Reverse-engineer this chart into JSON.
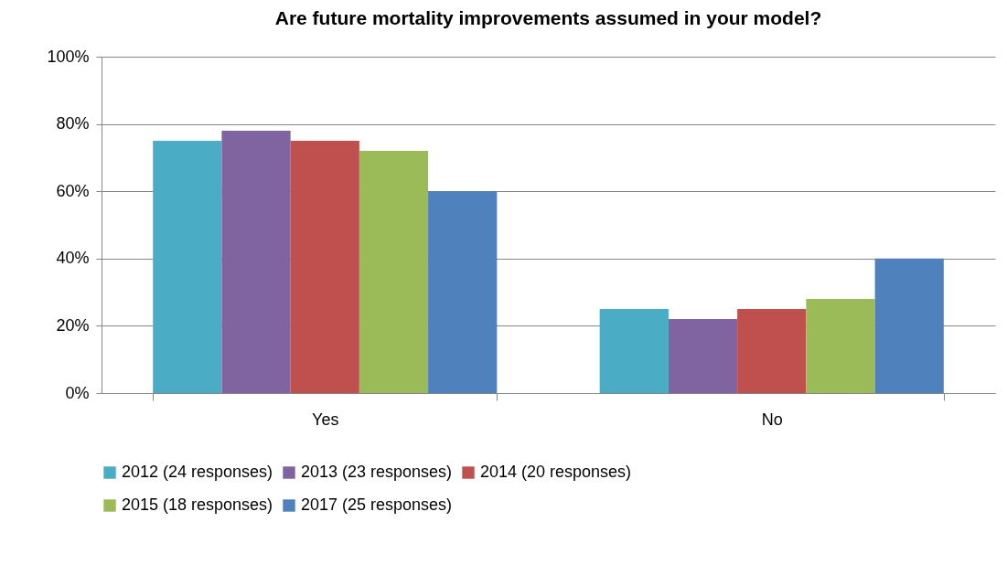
{
  "chart_data": {
    "type": "bar",
    "title": "Are future mortality improvements assumed in your model?",
    "categories": [
      "Yes",
      "No"
    ],
    "series": [
      {
        "name": "2012 (24 responses)",
        "color": "#4bacc6",
        "values": [
          75,
          25
        ]
      },
      {
        "name": "2013 (23 responses)",
        "color": "#8064a2",
        "values": [
          78,
          22
        ]
      },
      {
        "name": "2014 (20 responses)",
        "color": "#c0504d",
        "values": [
          75,
          25
        ]
      },
      {
        "name": "2015 (18 responses)",
        "color": "#9bbb59",
        "values": [
          72,
          28
        ]
      },
      {
        "name": "2017 (25 responses)",
        "color": "#4f81bd",
        "values": [
          60,
          40
        ]
      }
    ],
    "ylim": [
      0,
      100
    ],
    "yticks": [
      {
        "value": 0,
        "label": "0%"
      },
      {
        "value": 20,
        "label": "20%"
      },
      {
        "value": 40,
        "label": "40%"
      },
      {
        "value": 60,
        "label": "60%"
      },
      {
        "value": 80,
        "label": "80%"
      },
      {
        "value": 100,
        "label": "100%"
      }
    ],
    "grid": "y",
    "legend": "bottom"
  }
}
